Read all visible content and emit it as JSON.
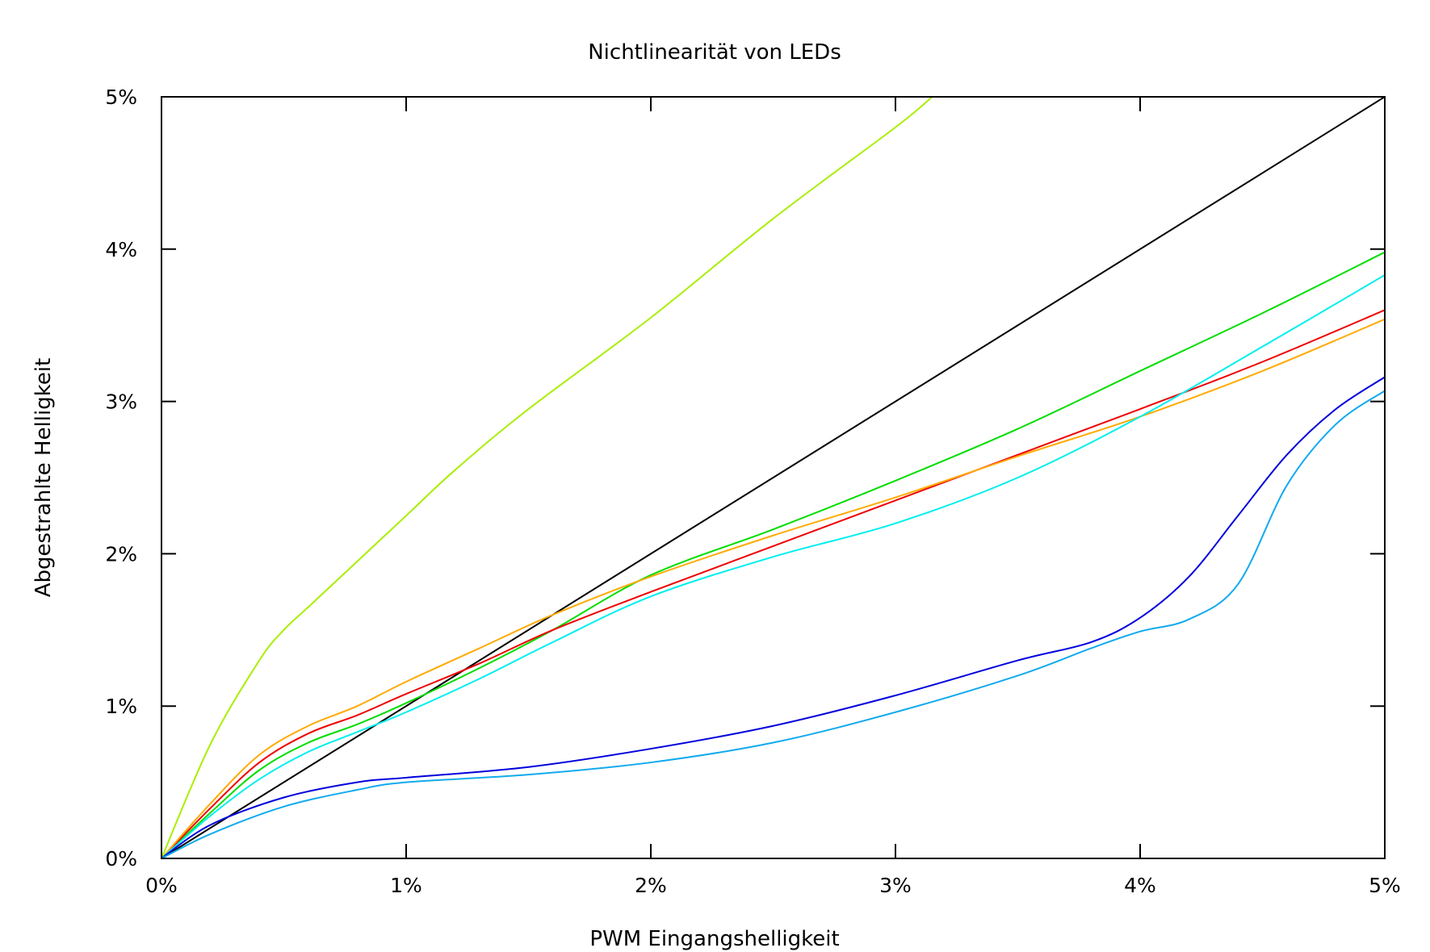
{
  "chart_data": {
    "type": "line",
    "title": "Nichtlinearität von LEDs",
    "xlabel": "PWM Eingangshelligkeit",
    "ylabel": "Abgestrahlte Helligkeit",
    "xlim": [
      0,
      5
    ],
    "ylim": [
      0,
      5
    ],
    "x_ticks": [
      0,
      1,
      2,
      3,
      4,
      5
    ],
    "y_ticks": [
      0,
      1,
      2,
      3,
      4,
      5
    ],
    "x_tick_labels": [
      "0%",
      "1%",
      "2%",
      "3%",
      "4%",
      "5%"
    ],
    "y_tick_labels": [
      "0%",
      "1%",
      "2%",
      "3%",
      "4%",
      "5%"
    ],
    "grid": false,
    "series": [
      {
        "color": "#000000",
        "x": [
          0,
          5
        ],
        "y": [
          0,
          5
        ]
      },
      {
        "color": "#aaee00",
        "x": [
          0,
          0.2,
          0.4,
          0.5,
          0.6,
          0.8,
          1.0,
          1.2,
          1.5,
          2.0,
          2.5,
          3.0,
          3.15
        ],
        "y": [
          0,
          0.75,
          1.3,
          1.5,
          1.65,
          1.95,
          2.25,
          2.55,
          2.95,
          3.55,
          4.2,
          4.8,
          5.0
        ]
      },
      {
        "color": "#00dd00",
        "x": [
          0,
          0.2,
          0.4,
          0.6,
          0.8,
          1.0,
          1.3,
          1.6,
          2.0,
          2.5,
          3.0,
          3.5,
          4.0,
          4.5,
          5.0
        ],
        "y": [
          0,
          0.3,
          0.58,
          0.76,
          0.88,
          1.02,
          1.25,
          1.5,
          1.86,
          2.16,
          2.48,
          2.82,
          3.2,
          3.58,
          3.98
        ]
      },
      {
        "color": "#ee0000",
        "x": [
          0,
          0.2,
          0.4,
          0.6,
          0.8,
          1.0,
          1.3,
          1.6,
          2.0,
          2.5,
          3.0,
          3.5,
          4.0,
          4.5,
          5.0
        ],
        "y": [
          0,
          0.33,
          0.63,
          0.82,
          0.94,
          1.08,
          1.28,
          1.5,
          1.75,
          2.05,
          2.35,
          2.65,
          2.95,
          3.26,
          3.6
        ]
      },
      {
        "color": "#ffaa00",
        "x": [
          0,
          0.2,
          0.4,
          0.6,
          0.8,
          1.0,
          1.3,
          1.6,
          2.0,
          2.5,
          3.0,
          3.5,
          4.0,
          4.5,
          5.0
        ],
        "y": [
          0,
          0.36,
          0.68,
          0.87,
          1.0,
          1.16,
          1.38,
          1.6,
          1.85,
          2.12,
          2.37,
          2.64,
          2.9,
          3.2,
          3.54
        ]
      },
      {
        "color": "#00eeee",
        "x": [
          0,
          0.2,
          0.4,
          0.6,
          0.8,
          1.0,
          1.3,
          1.6,
          2.0,
          2.5,
          3.0,
          3.5,
          4.0,
          4.5,
          5.0
        ],
        "y": [
          0,
          0.28,
          0.52,
          0.7,
          0.83,
          0.96,
          1.18,
          1.42,
          1.72,
          1.98,
          2.2,
          2.5,
          2.9,
          3.36,
          3.83
        ]
      },
      {
        "color": "#0000dd",
        "x": [
          0,
          0.2,
          0.5,
          0.8,
          1.0,
          1.5,
          2.0,
          2.5,
          3.0,
          3.5,
          3.8,
          4.0,
          4.2,
          4.4,
          4.6,
          4.8,
          5.0
        ],
        "y": [
          0,
          0.22,
          0.4,
          0.5,
          0.53,
          0.6,
          0.72,
          0.87,
          1.07,
          1.3,
          1.42,
          1.58,
          1.85,
          2.25,
          2.65,
          2.95,
          3.16
        ]
      },
      {
        "color": "#11aaee",
        "x": [
          0,
          0.2,
          0.5,
          0.8,
          1.0,
          1.5,
          2.0,
          2.5,
          3.0,
          3.5,
          3.8,
          4.0,
          4.2,
          4.4,
          4.6,
          4.8,
          5.0
        ],
        "y": [
          0,
          0.16,
          0.34,
          0.45,
          0.5,
          0.55,
          0.63,
          0.76,
          0.96,
          1.2,
          1.38,
          1.49,
          1.57,
          1.8,
          2.45,
          2.85,
          3.07
        ]
      }
    ]
  }
}
